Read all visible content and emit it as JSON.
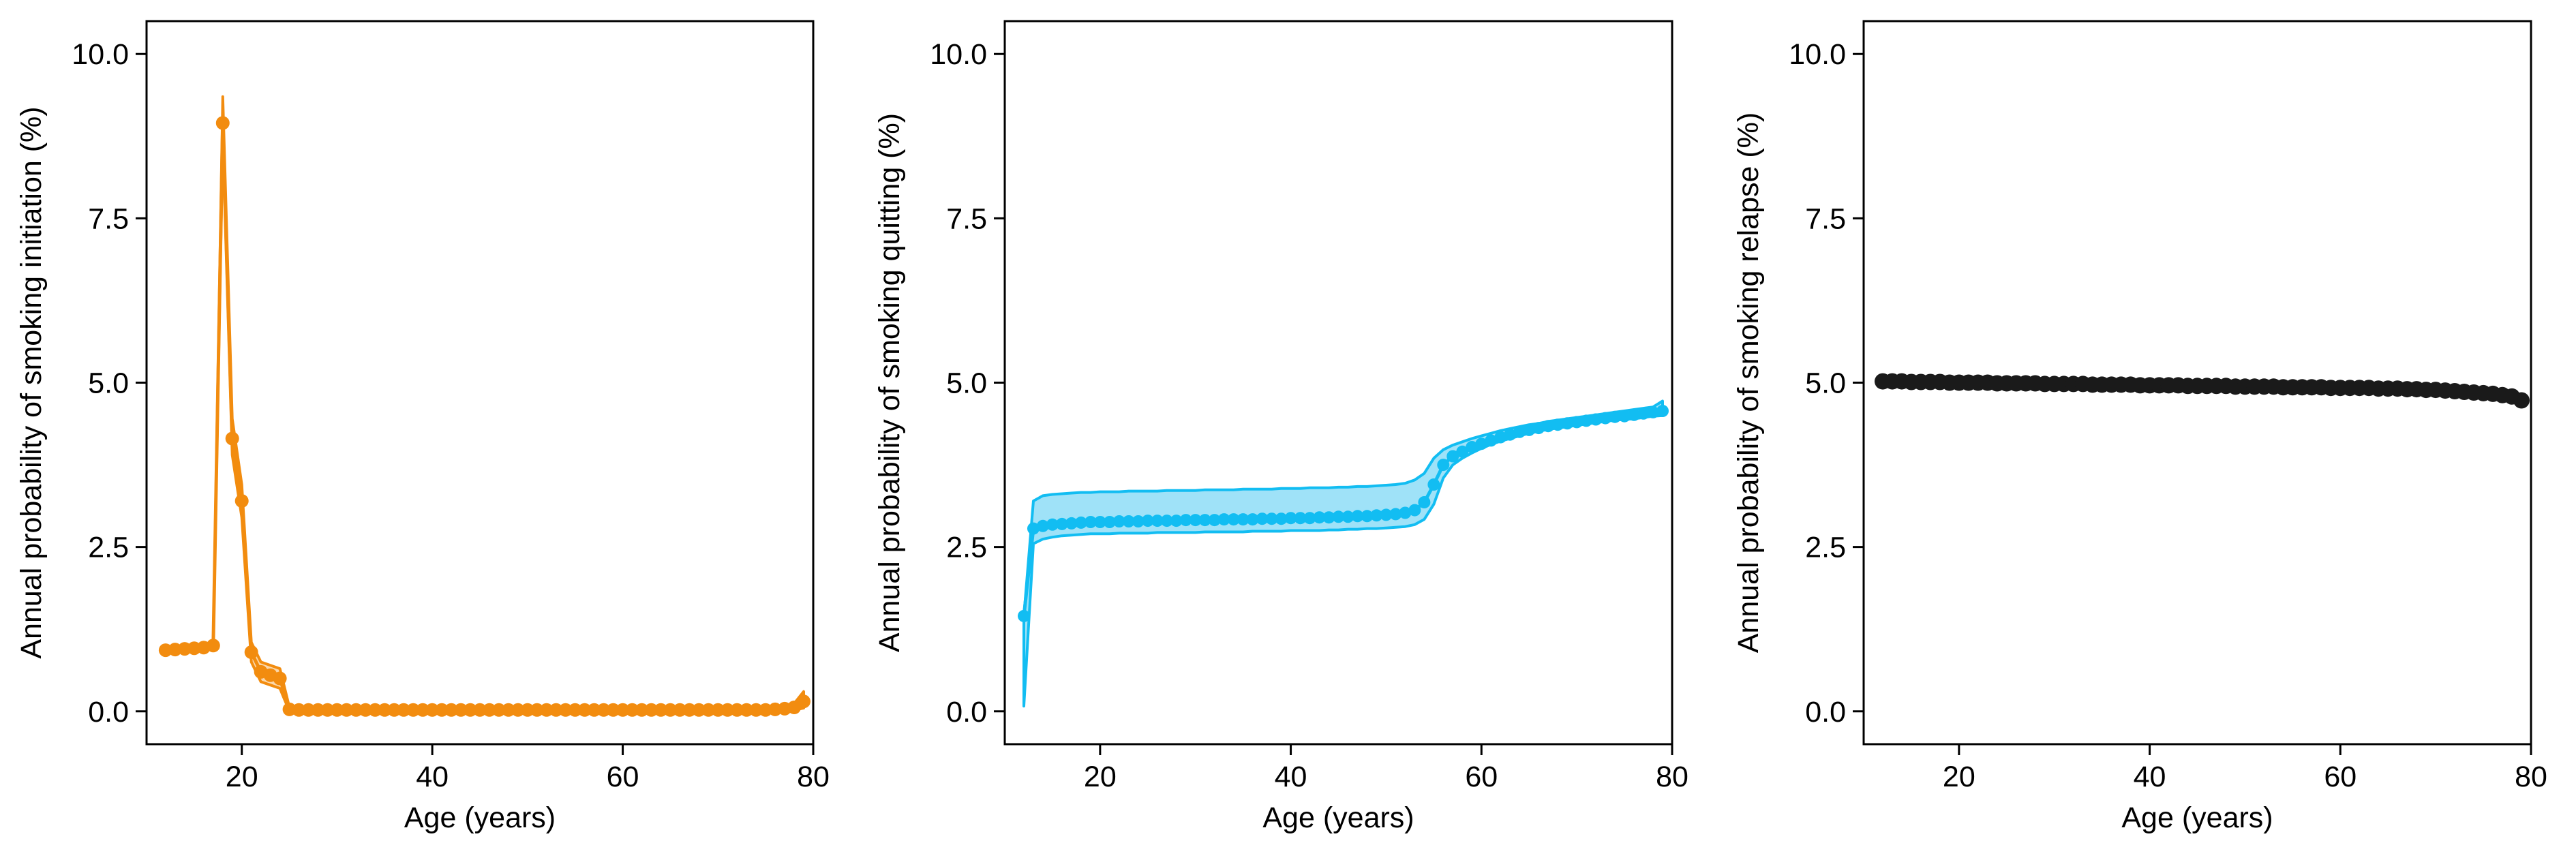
{
  "figure": {
    "background": "#ffffff",
    "axis_color": "#000000"
  },
  "chart_data": [
    {
      "type": "line",
      "title": "",
      "xlabel": "Age (years)",
      "ylabel": "Annual probability of smoking initiation (%)",
      "xlim": [
        10,
        80
      ],
      "ylim": [
        -0.5,
        10.5
      ],
      "xticks": [
        20,
        40,
        60,
        80
      ],
      "xtick_labels": [
        "20",
        "40",
        "60",
        "80"
      ],
      "yticks": [
        0,
        2.5,
        5,
        7.5,
        10
      ],
      "ytick_labels": [
        "0.0",
        "2.5",
        "5.0",
        "7.5",
        "10.0"
      ],
      "grid": false,
      "legend": "none",
      "color": "#F28C0F",
      "marker_radius": 10,
      "series": [
        {
          "x": [
            12,
            13,
            14,
            15,
            16,
            17,
            18,
            19,
            20,
            21,
            22,
            23,
            24,
            25,
            26,
            27,
            28,
            29,
            30,
            31,
            32,
            33,
            34,
            35,
            36,
            37,
            38,
            39,
            40,
            41,
            42,
            43,
            44,
            45,
            46,
            47,
            48,
            49,
            50,
            51,
            52,
            53,
            54,
            55,
            56,
            57,
            58,
            59,
            60,
            61,
            62,
            63,
            64,
            65,
            66,
            67,
            68,
            69,
            70,
            71,
            72,
            73,
            74,
            75,
            76,
            77,
            78,
            79
          ],
          "y": [
            0.93,
            0.94,
            0.95,
            0.96,
            0.97,
            1.0,
            8.95,
            4.15,
            3.2,
            0.9,
            0.6,
            0.55,
            0.5,
            0.03,
            0.02,
            0.02,
            0.02,
            0.02,
            0.02,
            0.02,
            0.02,
            0.02,
            0.02,
            0.02,
            0.02,
            0.02,
            0.02,
            0.02,
            0.02,
            0.02,
            0.02,
            0.02,
            0.02,
            0.02,
            0.02,
            0.02,
            0.02,
            0.02,
            0.02,
            0.02,
            0.02,
            0.02,
            0.02,
            0.02,
            0.02,
            0.02,
            0.02,
            0.02,
            0.02,
            0.02,
            0.02,
            0.02,
            0.02,
            0.02,
            0.02,
            0.02,
            0.02,
            0.02,
            0.02,
            0.02,
            0.02,
            0.02,
            0.02,
            0.02,
            0.03,
            0.04,
            0.06,
            0.15
          ],
          "lower": [
            0.9,
            0.91,
            0.92,
            0.93,
            0.94,
            0.97,
            8.7,
            3.9,
            2.95,
            0.75,
            0.45,
            0.4,
            0.35,
            0.0,
            0.0,
            0.0,
            0.0,
            0.0,
            0.0,
            0.0,
            0.0,
            0.0,
            0.0,
            0.0,
            0.0,
            0.0,
            0.0,
            0.0,
            0.0,
            0.0,
            0.0,
            0.0,
            0.0,
            0.0,
            0.0,
            0.0,
            0.0,
            0.0,
            0.0,
            0.0,
            0.0,
            0.0,
            0.0,
            0.0,
            0.0,
            0.0,
            0.0,
            0.0,
            0.0,
            0.0,
            0.0,
            0.0,
            0.0,
            0.0,
            0.0,
            0.0,
            0.0,
            0.0,
            0.0,
            0.0,
            0.0,
            0.0,
            0.0,
            0.0,
            0.0,
            0.01,
            0.02,
            0.05
          ],
          "upper": [
            0.96,
            0.97,
            0.98,
            0.99,
            1.0,
            1.03,
            9.35,
            4.45,
            3.45,
            1.05,
            0.75,
            0.7,
            0.65,
            0.06,
            0.05,
            0.05,
            0.05,
            0.05,
            0.05,
            0.05,
            0.05,
            0.05,
            0.05,
            0.05,
            0.05,
            0.05,
            0.05,
            0.05,
            0.05,
            0.05,
            0.05,
            0.05,
            0.05,
            0.05,
            0.05,
            0.05,
            0.05,
            0.05,
            0.05,
            0.05,
            0.05,
            0.05,
            0.05,
            0.05,
            0.05,
            0.05,
            0.05,
            0.05,
            0.05,
            0.05,
            0.05,
            0.05,
            0.05,
            0.05,
            0.05,
            0.05,
            0.05,
            0.05,
            0.05,
            0.05,
            0.05,
            0.05,
            0.05,
            0.05,
            0.06,
            0.08,
            0.12,
            0.3
          ]
        }
      ]
    },
    {
      "type": "line",
      "title": "",
      "xlabel": "Age (years)",
      "ylabel": "Annual probability of smoking quitting (%)",
      "xlim": [
        10,
        80
      ],
      "ylim": [
        -0.5,
        10.5
      ],
      "xticks": [
        20,
        40,
        60,
        80
      ],
      "xtick_labels": [
        "20",
        "40",
        "60",
        "80"
      ],
      "yticks": [
        0,
        2.5,
        5,
        7.5,
        10
      ],
      "ytick_labels": [
        "0.0",
        "2.5",
        "5.0",
        "7.5",
        "10.0"
      ],
      "grid": false,
      "legend": "none",
      "color": "#12BDF2",
      "band_color": "#9FE2F8",
      "marker_radius": 9,
      "series": [
        {
          "x": [
            12,
            13,
            14,
            15,
            16,
            17,
            18,
            19,
            20,
            21,
            22,
            23,
            24,
            25,
            26,
            27,
            28,
            29,
            30,
            31,
            32,
            33,
            34,
            35,
            36,
            37,
            38,
            39,
            40,
            41,
            42,
            43,
            44,
            45,
            46,
            47,
            48,
            49,
            50,
            51,
            52,
            53,
            54,
            55,
            56,
            57,
            58,
            59,
            60,
            61,
            62,
            63,
            64,
            65,
            66,
            67,
            68,
            69,
            70,
            71,
            72,
            73,
            74,
            75,
            76,
            77,
            78,
            79
          ],
          "y": [
            1.45,
            2.78,
            2.82,
            2.84,
            2.85,
            2.86,
            2.87,
            2.88,
            2.88,
            2.88,
            2.89,
            2.89,
            2.89,
            2.9,
            2.9,
            2.9,
            2.9,
            2.91,
            2.91,
            2.91,
            2.91,
            2.92,
            2.92,
            2.92,
            2.92,
            2.93,
            2.93,
            2.93,
            2.94,
            2.94,
            2.94,
            2.95,
            2.95,
            2.96,
            2.96,
            2.97,
            2.97,
            2.98,
            2.99,
            3.0,
            3.02,
            3.06,
            3.18,
            3.45,
            3.75,
            3.88,
            3.95,
            4.02,
            4.07,
            4.12,
            4.17,
            4.21,
            4.25,
            4.28,
            4.31,
            4.34,
            4.36,
            4.38,
            4.4,
            4.42,
            4.44,
            4.46,
            4.48,
            4.49,
            4.51,
            4.53,
            4.55,
            4.57
          ],
          "lower": [
            0.08,
            2.55,
            2.62,
            2.65,
            2.67,
            2.68,
            2.69,
            2.7,
            2.7,
            2.7,
            2.71,
            2.71,
            2.71,
            2.71,
            2.72,
            2.72,
            2.72,
            2.72,
            2.72,
            2.73,
            2.73,
            2.73,
            2.73,
            2.73,
            2.74,
            2.74,
            2.74,
            2.74,
            2.75,
            2.75,
            2.75,
            2.75,
            2.76,
            2.76,
            2.77,
            2.77,
            2.78,
            2.78,
            2.79,
            2.8,
            2.81,
            2.84,
            2.92,
            3.15,
            3.55,
            3.75,
            3.85,
            3.93,
            4.0,
            4.06,
            4.11,
            4.15,
            4.19,
            4.23,
            4.26,
            4.29,
            4.31,
            4.33,
            4.35,
            4.37,
            4.39,
            4.41,
            4.43,
            4.44,
            4.45,
            4.47,
            4.49,
            4.5
          ],
          "upper": [
            1.45,
            3.2,
            3.28,
            3.3,
            3.31,
            3.32,
            3.33,
            3.33,
            3.34,
            3.34,
            3.34,
            3.35,
            3.35,
            3.35,
            3.35,
            3.36,
            3.36,
            3.36,
            3.36,
            3.37,
            3.37,
            3.37,
            3.37,
            3.38,
            3.38,
            3.38,
            3.38,
            3.39,
            3.39,
            3.39,
            3.4,
            3.4,
            3.4,
            3.41,
            3.41,
            3.42,
            3.42,
            3.43,
            3.44,
            3.45,
            3.47,
            3.52,
            3.62,
            3.85,
            3.98,
            4.05,
            4.1,
            4.15,
            4.19,
            4.23,
            4.27,
            4.3,
            4.33,
            4.36,
            4.38,
            4.41,
            4.43,
            4.45,
            4.47,
            4.49,
            4.51,
            4.53,
            4.55,
            4.57,
            4.59,
            4.61,
            4.63,
            4.72
          ]
        }
      ]
    },
    {
      "type": "line",
      "title": "",
      "xlabel": "Age (years)",
      "ylabel": "Annual probability of smoking relapse (%)",
      "xlim": [
        10,
        80
      ],
      "ylim": [
        -0.5,
        10.5
      ],
      "xticks": [
        20,
        40,
        60,
        80
      ],
      "xtick_labels": [
        "20",
        "40",
        "60",
        "80"
      ],
      "yticks": [
        0,
        2.5,
        5,
        7.5,
        10
      ],
      "ytick_labels": [
        "0.0",
        "2.5",
        "5.0",
        "7.5",
        "10.0"
      ],
      "grid": false,
      "legend": "none",
      "color": "#1A1A1A",
      "marker_radius": 12,
      "series": [
        {
          "x": [
            12,
            13,
            14,
            15,
            16,
            17,
            18,
            19,
            20,
            21,
            22,
            23,
            24,
            25,
            26,
            27,
            28,
            29,
            30,
            31,
            32,
            33,
            34,
            35,
            36,
            37,
            38,
            39,
            40,
            41,
            42,
            43,
            44,
            45,
            46,
            47,
            48,
            49,
            50,
            51,
            52,
            53,
            54,
            55,
            56,
            57,
            58,
            59,
            60,
            61,
            62,
            63,
            64,
            65,
            66,
            67,
            68,
            69,
            70,
            71,
            72,
            73,
            74,
            75,
            76,
            77,
            78,
            79
          ],
          "y": [
            5.02,
            5.02,
            5.02,
            5.01,
            5.01,
            5.01,
            5.01,
            5.0,
            5.0,
            5.0,
            5.0,
            5.0,
            4.99,
            4.99,
            4.99,
            4.99,
            4.99,
            4.98,
            4.98,
            4.98,
            4.98,
            4.98,
            4.97,
            4.97,
            4.97,
            4.97,
            4.97,
            4.96,
            4.96,
            4.96,
            4.96,
            4.96,
            4.95,
            4.95,
            4.95,
            4.95,
            4.95,
            4.94,
            4.94,
            4.94,
            4.94,
            4.94,
            4.93,
            4.93,
            4.93,
            4.93,
            4.93,
            4.92,
            4.92,
            4.92,
            4.92,
            4.92,
            4.91,
            4.91,
            4.91,
            4.9,
            4.9,
            4.89,
            4.89,
            4.88,
            4.87,
            4.86,
            4.85,
            4.84,
            4.83,
            4.81,
            4.79,
            4.73
          ],
          "lower": [
            4.99,
            4.99,
            4.99,
            4.98,
            4.98,
            4.98,
            4.98,
            4.97,
            4.97,
            4.97,
            4.97,
            4.97,
            4.96,
            4.96,
            4.96,
            4.96,
            4.96,
            4.95,
            4.95,
            4.95,
            4.95,
            4.95,
            4.94,
            4.94,
            4.94,
            4.94,
            4.94,
            4.93,
            4.93,
            4.93,
            4.93,
            4.93,
            4.92,
            4.92,
            4.92,
            4.92,
            4.92,
            4.91,
            4.91,
            4.91,
            4.91,
            4.91,
            4.9,
            4.9,
            4.9,
            4.9,
            4.9,
            4.89,
            4.89,
            4.89,
            4.89,
            4.89,
            4.88,
            4.88,
            4.88,
            4.87,
            4.87,
            4.86,
            4.86,
            4.85,
            4.84,
            4.83,
            4.82,
            4.81,
            4.79,
            4.77,
            4.74,
            4.64
          ],
          "upper": [
            5.05,
            5.05,
            5.05,
            5.04,
            5.04,
            5.04,
            5.04,
            5.03,
            5.03,
            5.03,
            5.03,
            5.03,
            5.02,
            5.02,
            5.02,
            5.02,
            5.02,
            5.01,
            5.01,
            5.01,
            5.01,
            5.01,
            5.0,
            5.0,
            5.0,
            5.0,
            5.0,
            4.99,
            4.99,
            4.99,
            4.99,
            4.99,
            4.98,
            4.98,
            4.98,
            4.98,
            4.98,
            4.97,
            4.97,
            4.97,
            4.97,
            4.97,
            4.96,
            4.96,
            4.96,
            4.96,
            4.96,
            4.95,
            4.95,
            4.95,
            4.95,
            4.95,
            4.94,
            4.94,
            4.94,
            4.93,
            4.93,
            4.92,
            4.92,
            4.91,
            4.9,
            4.89,
            4.88,
            4.87,
            4.86,
            4.85,
            4.83,
            4.78
          ]
        }
      ]
    }
  ]
}
